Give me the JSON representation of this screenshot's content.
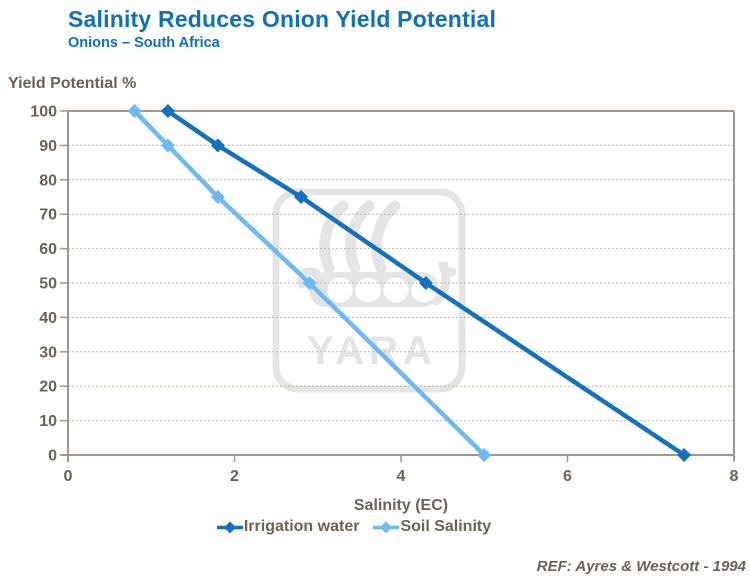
{
  "header": {
    "title": "Salinity Reduces Onion Yield Potential",
    "subtitle": "Onions – South Africa"
  },
  "footer": {
    "reference": "REF: Ayres & Westcott - 1994"
  },
  "watermark": {
    "name": "YARA",
    "color": "#e4e4e4"
  },
  "chart_data": {
    "type": "line",
    "title": "Salinity Reduces Onion Yield Potential",
    "subtitle": "Onions – South Africa",
    "xlabel": "Salinity (EC)",
    "ylabel": "Yield Potential %",
    "xlim": [
      0,
      8
    ],
    "ylim": [
      0,
      100
    ],
    "x_ticks": [
      0,
      2,
      4,
      6,
      8
    ],
    "y_ticks": [
      0,
      10,
      20,
      30,
      40,
      50,
      60,
      70,
      80,
      90,
      100
    ],
    "grid": "horizontal-dotted",
    "legend_position": "bottom",
    "marker": "diamond",
    "series": [
      {
        "name": "Irrigation water",
        "color": "#1272bd",
        "points": [
          [
            1.2,
            100
          ],
          [
            1.8,
            90
          ],
          [
            2.8,
            75
          ],
          [
            4.3,
            50
          ],
          [
            7.4,
            0
          ]
        ]
      },
      {
        "name": "Soil Salinity",
        "color": "#6dbaf2",
        "points": [
          [
            0.8,
            100
          ],
          [
            1.2,
            90
          ],
          [
            1.8,
            75
          ],
          [
            2.9,
            50
          ],
          [
            5.0,
            0
          ]
        ]
      }
    ],
    "style": {
      "axis_color": "#a2968a",
      "grid_color": "#c3b6a6",
      "label_color": "#6c6155"
    }
  }
}
